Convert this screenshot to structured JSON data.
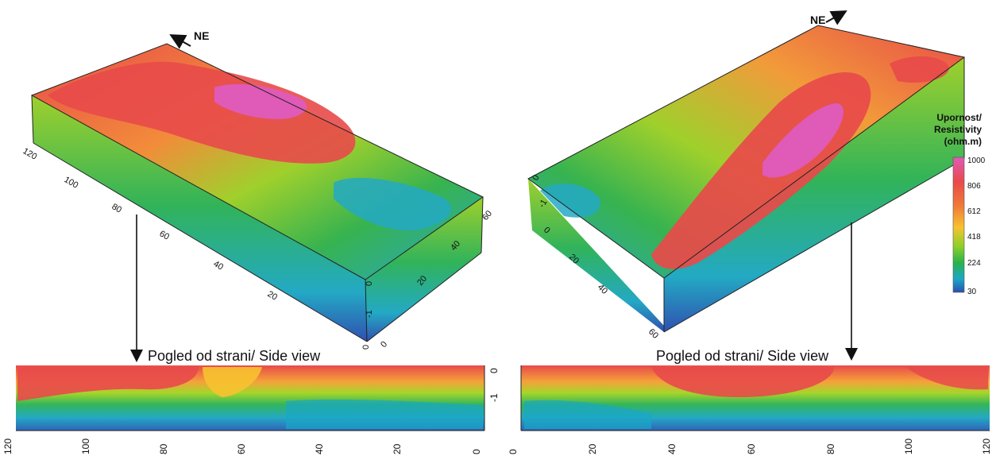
{
  "north_labels": {
    "left": "NE",
    "right": "NE"
  },
  "side_view_titles": {
    "left": "Pogled od strani/ Side view",
    "right": "Pogled od strani/ Side view"
  },
  "legend": {
    "title_lines": [
      "Upornost/",
      "Resistivity",
      "(ohm.m)"
    ],
    "ticks": [
      "1000",
      "806",
      "612",
      "418",
      "224",
      "30"
    ],
    "colors": [
      "#e05ab8",
      "#e84a4a",
      "#f07a3a",
      "#f7c230",
      "#8cd02a",
      "#2bb24a",
      "#1aa7c6",
      "#2a4fb0"
    ]
  },
  "left_block": {
    "length_ticks": [
      "120",
      "100",
      "80",
      "60",
      "40",
      "20"
    ],
    "width_ticks": [
      "60",
      "40",
      "20",
      "0"
    ],
    "depth_ticks": [
      "0",
      "-1",
      "0"
    ]
  },
  "right_block": {
    "length_ticks": [
      "0",
      "20",
      "40",
      "60"
    ],
    "depth_ticks": [
      "0",
      "-1"
    ]
  },
  "left_side_view": {
    "x_ticks": [
      "120",
      "100",
      "80",
      "60",
      "40",
      "20",
      "0"
    ],
    "y_ticks": [
      "0",
      "-1"
    ]
  },
  "right_side_view": {
    "x_ticks": [
      "0",
      "20",
      "40",
      "60",
      "80",
      "100",
      "120"
    ]
  }
}
